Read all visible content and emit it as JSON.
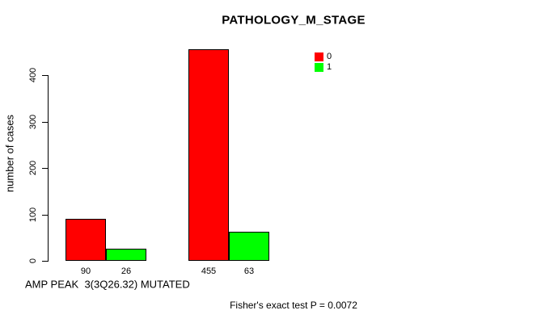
{
  "chart_data": {
    "type": "bar",
    "title": "PATHOLOGY_M_STAGE",
    "ylabel": "number of cases",
    "xlabel_caption": "AMP PEAK  3(3Q26.32) MUTATED",
    "footnote": "Fisher's exact test P = 0.0072",
    "ylim": [
      0,
      400
    ],
    "yticks": [
      0,
      100,
      200,
      300,
      400
    ],
    "grid": false,
    "legend_position": "top-right",
    "series": [
      {
        "name": "0",
        "color": "#ff0000",
        "values": [
          90,
          455
        ]
      },
      {
        "name": "1",
        "color": "#00ff00",
        "values": [
          26,
          63
        ]
      }
    ],
    "bar_labels": [
      [
        "90",
        "26"
      ],
      [
        "455",
        "63"
      ]
    ],
    "colors": {
      "bar_border": "#000000",
      "axis": "#000000",
      "background": "#ffffff"
    }
  }
}
